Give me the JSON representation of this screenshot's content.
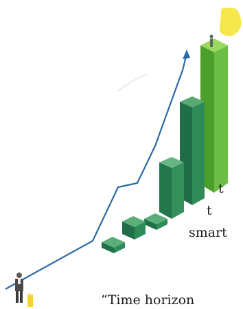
{
  "text_lines": [
    "t",
    "t",
    "smart",
    "“Time horizon"
  ],
  "colors": {
    "growth_line": "#2a6aa8",
    "bar_green_light": "#6cbd45",
    "bar_green_dark": "#2e8b57",
    "sun": "#f6e84c",
    "coin": "#f2d431"
  },
  "icons": [
    "growth-arrow-icon",
    "person-icon",
    "coin-icon",
    "sun-icon"
  ]
}
